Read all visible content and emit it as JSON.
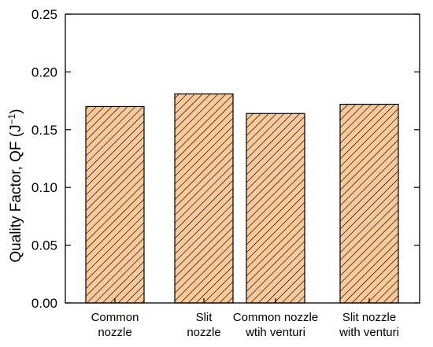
{
  "chart_data": {
    "type": "bar",
    "title": "",
    "xlabel": "",
    "ylabel": "Quality Factor, QF (J",
    "ylabel_sup": "−1",
    "ylabel_close": ")",
    "categories": [
      [
        "Common",
        "nozzle"
      ],
      [
        "Slit",
        "nozzle"
      ],
      [
        "Common nozzle",
        "wtih venturi"
      ],
      [
        "Slit nozzle",
        "with venturi"
      ]
    ],
    "values": [
      0.17,
      0.181,
      0.164,
      0.172
    ],
    "ylim": [
      0.0,
      0.25
    ],
    "yticks": [
      "0.00",
      "0.05",
      "0.10",
      "0.15",
      "0.20",
      "0.25"
    ],
    "ytick_values": [
      0.0,
      0.05,
      0.1,
      0.15,
      0.2,
      0.25
    ],
    "grid": false,
    "legend": "none",
    "bar_fill": "#f9c99a",
    "bar_hatch": "#000000",
    "bar_pattern": "diagonal-hatch"
  }
}
